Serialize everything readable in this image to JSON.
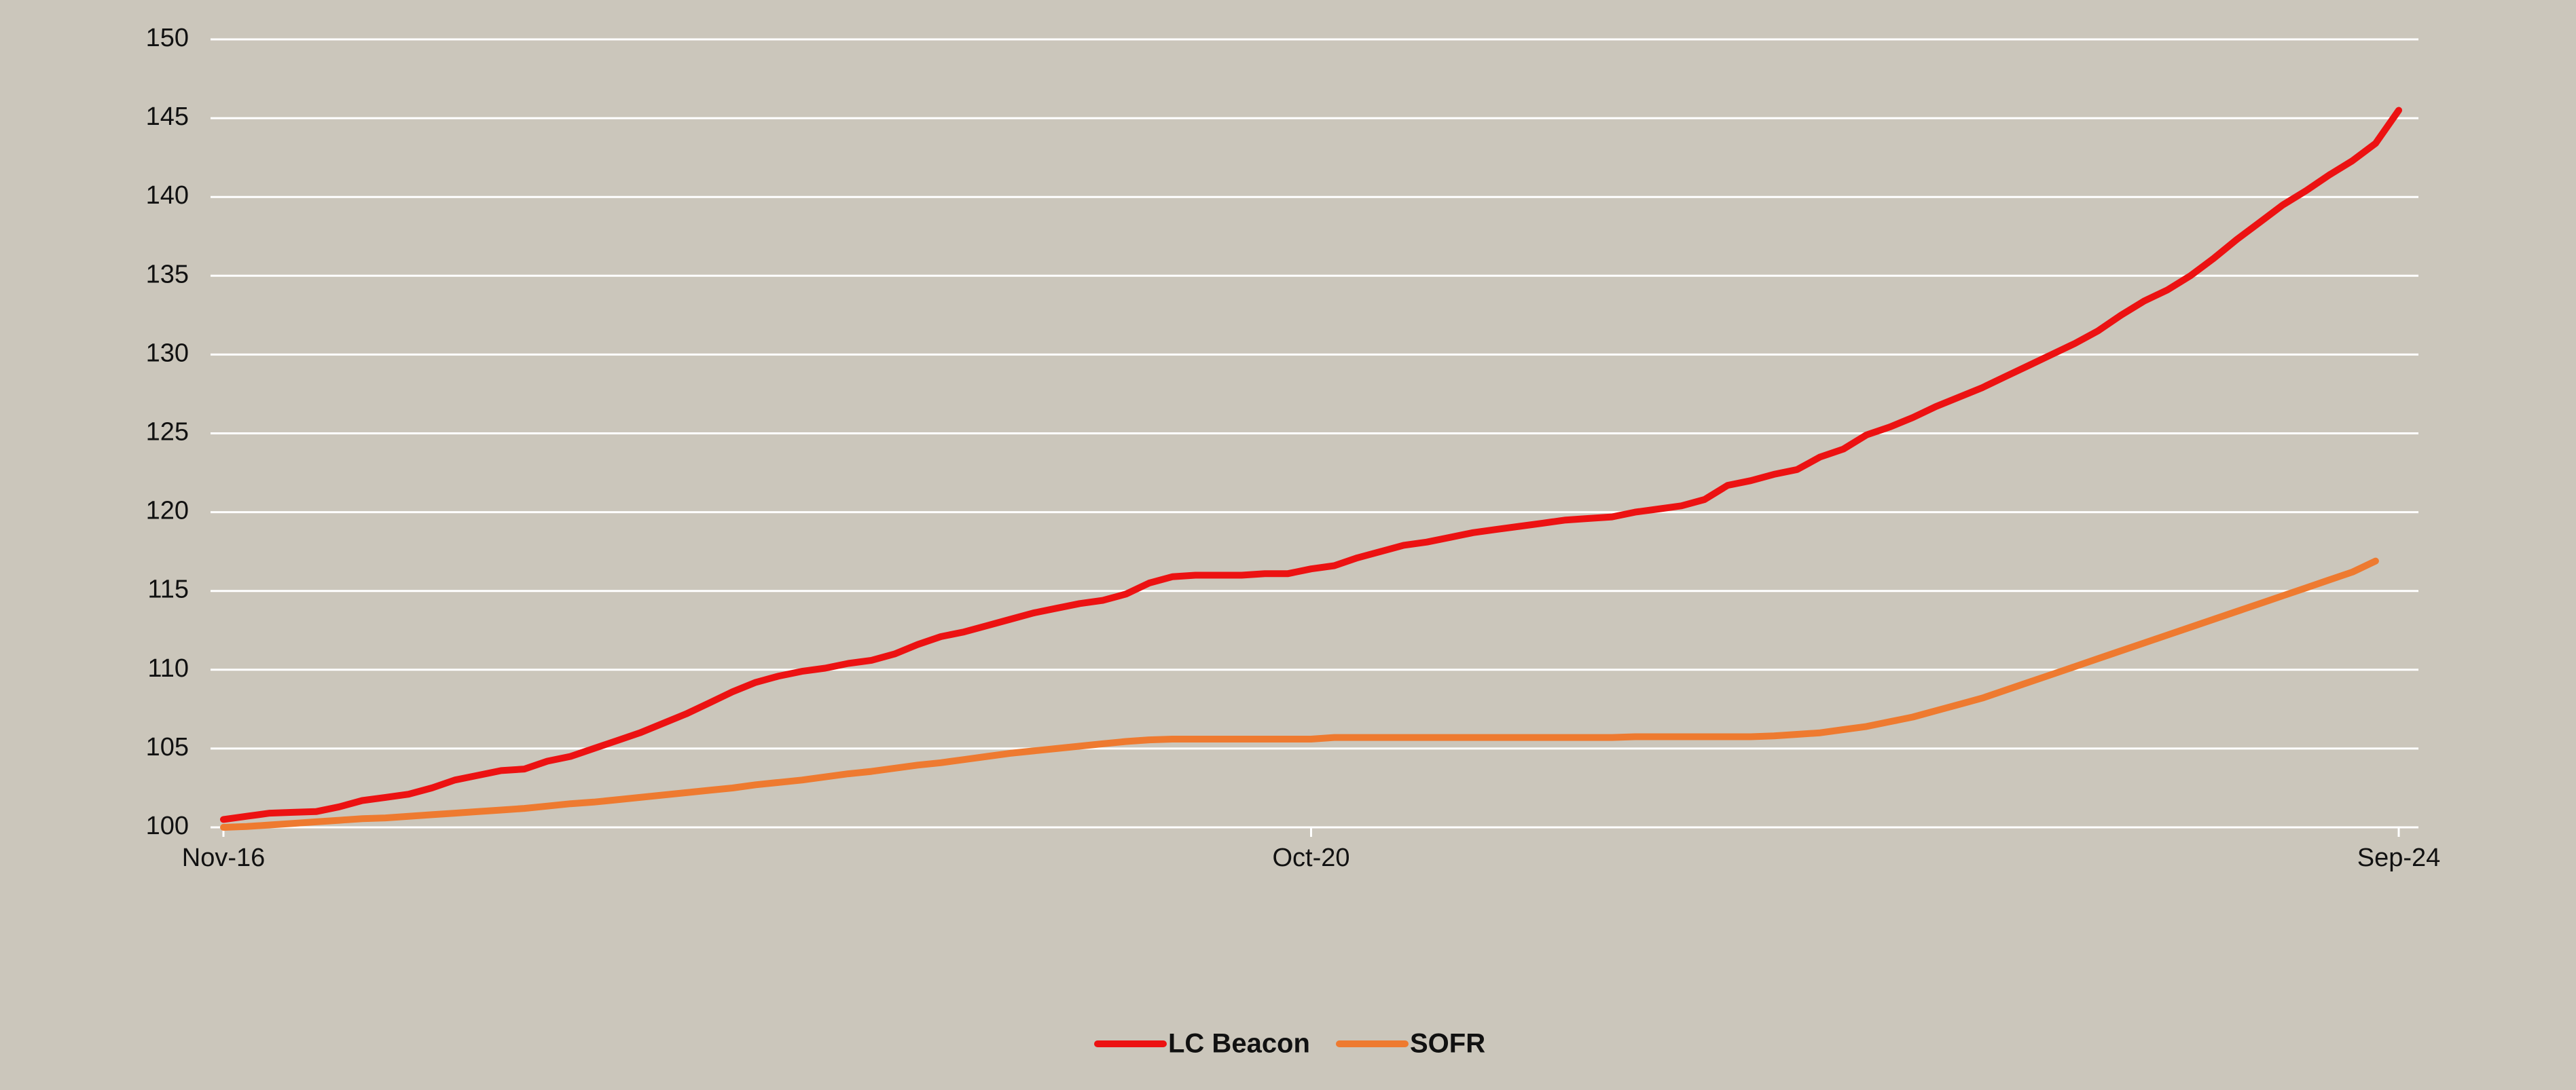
{
  "chart_data": {
    "type": "line",
    "categories": [
      "Nov-16",
      null,
      null,
      null,
      null,
      null,
      null,
      null,
      null,
      null,
      null,
      null,
      null,
      null,
      null,
      null,
      null,
      null,
      null,
      null,
      null,
      null,
      null,
      null,
      null,
      null,
      null,
      null,
      null,
      null,
      null,
      null,
      null,
      null,
      null,
      null,
      null,
      null,
      null,
      null,
      null,
      null,
      null,
      null,
      null,
      null,
      null,
      "Oct-20",
      null,
      null,
      null,
      null,
      null,
      null,
      null,
      null,
      null,
      null,
      null,
      null,
      null,
      null,
      null,
      null,
      null,
      null,
      null,
      null,
      null,
      null,
      null,
      null,
      null,
      null,
      null,
      null,
      null,
      null,
      null,
      null,
      null,
      null,
      null,
      null,
      null,
      null,
      null,
      null,
      null,
      null,
      null,
      null,
      null,
      null,
      "Sep-24"
    ],
    "series": [
      {
        "name": "LC Beacon",
        "color": "#ec1212",
        "values": [
          100.5,
          100.7,
          100.9,
          100.95,
          101.0,
          101.3,
          101.7,
          101.9,
          102.1,
          102.5,
          103.0,
          103.3,
          103.6,
          103.7,
          104.2,
          104.5,
          105.0,
          105.5,
          106.0,
          106.6,
          107.2,
          107.9,
          108.6,
          109.2,
          109.6,
          109.9,
          110.1,
          110.4,
          110.6,
          111.0,
          111.6,
          112.1,
          112.4,
          112.8,
          113.2,
          113.6,
          113.9,
          114.2,
          114.4,
          114.8,
          115.5,
          115.9,
          116.0,
          116.0,
          116.0,
          116.1,
          116.1,
          116.4,
          116.6,
          117.1,
          117.5,
          117.9,
          118.1,
          118.4,
          118.7,
          118.9,
          119.1,
          119.3,
          119.5,
          119.6,
          119.7,
          120.0,
          120.2,
          120.4,
          120.8,
          121.7,
          122.0,
          122.4,
          122.7,
          123.5,
          124.0,
          124.9,
          125.4,
          126.0,
          126.7,
          127.3,
          127.9,
          128.6,
          129.3,
          130.0,
          130.7,
          131.5,
          132.5,
          133.4,
          134.1,
          135.0,
          136.1,
          137.3,
          138.4,
          139.5,
          140.4,
          141.4,
          142.3,
          143.4,
          145.5
        ]
      },
      {
        "name": "SOFR",
        "color": "#ee7a30",
        "values": [
          100.0,
          100.05,
          100.15,
          100.25,
          100.35,
          100.45,
          100.55,
          100.6,
          100.7,
          100.8,
          100.9,
          101.0,
          101.1,
          101.2,
          101.35,
          101.5,
          101.6,
          101.75,
          101.9,
          102.05,
          102.2,
          102.35,
          102.5,
          102.7,
          102.85,
          103.0,
          103.2,
          103.4,
          103.55,
          103.75,
          103.95,
          104.1,
          104.3,
          104.5,
          104.7,
          104.85,
          105.0,
          105.15,
          105.3,
          105.45,
          105.55,
          105.6,
          105.6,
          105.6,
          105.6,
          105.6,
          105.6,
          105.6,
          105.7,
          105.7,
          105.7,
          105.7,
          105.7,
          105.7,
          105.7,
          105.7,
          105.7,
          105.7,
          105.7,
          105.7,
          105.7,
          105.75,
          105.75,
          105.75,
          105.75,
          105.75,
          105.75,
          105.8,
          105.9,
          106.0,
          106.2,
          106.4,
          106.7,
          107.0,
          107.4,
          107.8,
          108.2,
          108.7,
          109.2,
          109.7,
          110.2,
          110.7,
          111.2,
          111.7,
          112.2,
          112.7,
          113.2,
          113.7,
          114.2,
          114.7,
          115.2,
          115.7,
          116.2,
          116.9,
          null
        ]
      }
    ],
    "ylim": [
      100,
      150
    ],
    "yticks": [
      100,
      105,
      110,
      115,
      120,
      125,
      130,
      135,
      140,
      145,
      150
    ],
    "grid": true
  }
}
